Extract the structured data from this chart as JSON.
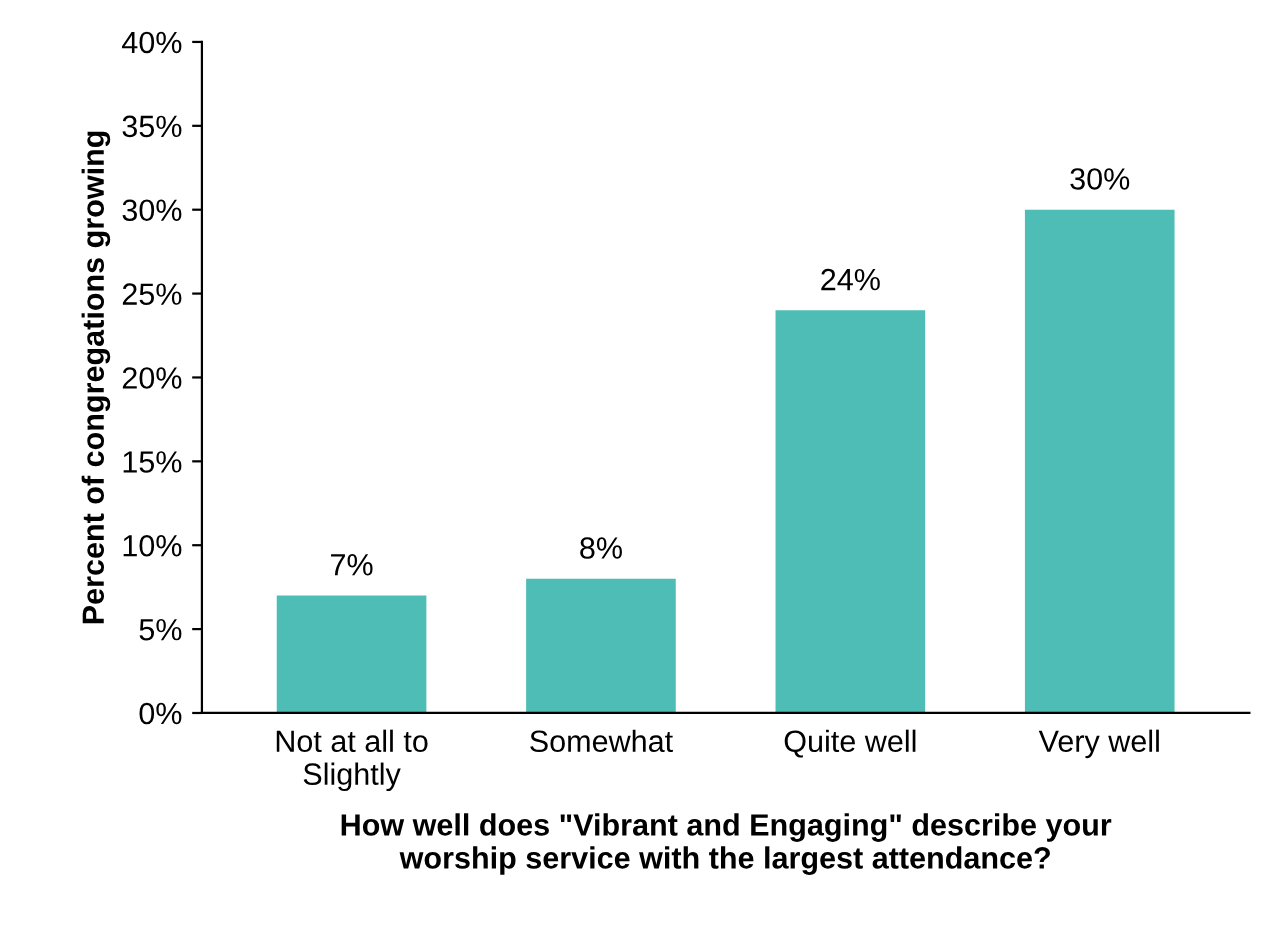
{
  "chart_data": {
    "type": "bar",
    "categories": [
      "Not at all to\nSlightly",
      "Somewhat",
      "Quite well",
      "Very well"
    ],
    "values": [
      7,
      8,
      24,
      30
    ],
    "value_labels": [
      "7%",
      "8%",
      "24%",
      "30%"
    ],
    "color": "#4dbdb5",
    "xlabel": "How well does \"Vibrant and Engaging\" describe your\nworship service with the largest attendance?",
    "ylabel": "Percent of congregations growing",
    "ylim": [
      0,
      40
    ],
    "yticks": [
      {
        "value": 0,
        "label": "0%"
      },
      {
        "value": 5,
        "label": "5%"
      },
      {
        "value": 10,
        "label": "10%"
      },
      {
        "value": 15,
        "label": "15%"
      },
      {
        "value": 20,
        "label": "20%"
      },
      {
        "value": 25,
        "label": "25%"
      },
      {
        "value": 30,
        "label": "30%"
      },
      {
        "value": 35,
        "label": "35%"
      },
      {
        "value": 40,
        "label": "40%"
      }
    ],
    "grid": false,
    "legend": false
  }
}
